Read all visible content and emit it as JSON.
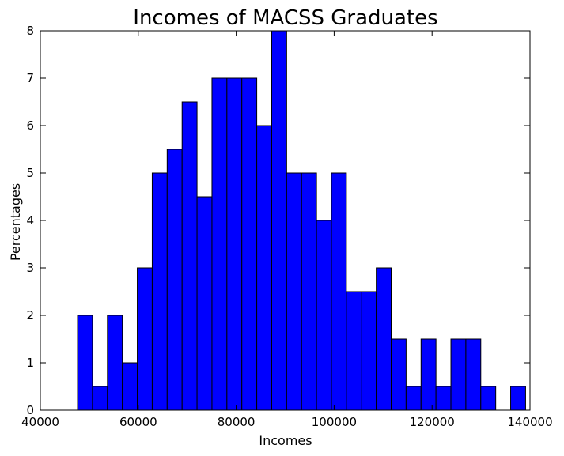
{
  "chart_data": {
    "type": "bar",
    "title": "Incomes of MACSS Graduates",
    "xlabel": "Incomes",
    "ylabel": "Percentages",
    "xlim": [
      40000,
      140000
    ],
    "ylim": [
      0,
      8
    ],
    "xticks": [
      "40000",
      "60000",
      "80000",
      "100000",
      "120000",
      "140000"
    ],
    "yticks": [
      "0",
      "1",
      "2",
      "3",
      "4",
      "5",
      "6",
      "7",
      "8"
    ],
    "bin_width": 3050,
    "bin_start": 47600,
    "values": [
      2,
      0.5,
      2,
      1,
      3,
      5,
      5.5,
      6.5,
      4.5,
      7,
      7,
      7,
      6,
      8,
      5,
      5,
      4,
      5,
      2.5,
      2.5,
      3,
      1.5,
      0.5,
      1.5,
      0.5,
      1.5,
      1.5,
      0.5,
      0,
      0.5
    ],
    "bar_color": "#0000ff",
    "edge_color": "#000000",
    "grid": false,
    "legend": "none"
  }
}
